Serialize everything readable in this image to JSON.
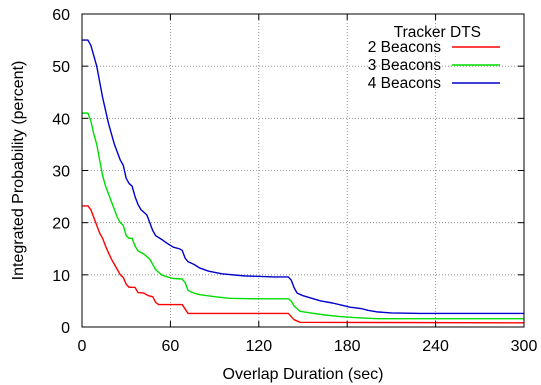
{
  "chart_data": {
    "type": "line",
    "title": "",
    "xlabel": "Overlap Duration (sec)",
    "ylabel": "Integrated Probability (percent)",
    "xlim": [
      0,
      300
    ],
    "ylim": [
      0,
      60
    ],
    "xticks": [
      0,
      60,
      120,
      180,
      240,
      300
    ],
    "yticks": [
      0,
      10,
      20,
      30,
      40,
      50,
      60
    ],
    "grid": true,
    "legend": {
      "title": "Tracker DTS",
      "placement": "top-right"
    },
    "series": [
      {
        "name": "2 Beacons",
        "color": "#ff0000",
        "points": [
          [
            0,
            23.2
          ],
          [
            4,
            23.2
          ],
          [
            6,
            22.5
          ],
          [
            8,
            21
          ],
          [
            10,
            19.5
          ],
          [
            12,
            18
          ],
          [
            14,
            17
          ],
          [
            16,
            15.5
          ],
          [
            18,
            14.2
          ],
          [
            20,
            13
          ],
          [
            22,
            12
          ],
          [
            24,
            11
          ],
          [
            26,
            10
          ],
          [
            28,
            9.5
          ],
          [
            30,
            8.2
          ],
          [
            32,
            7.6
          ],
          [
            36,
            7.6
          ],
          [
            38,
            6.6
          ],
          [
            42,
            6.5
          ],
          [
            45,
            6
          ],
          [
            48,
            5.8
          ],
          [
            50,
            4.7
          ],
          [
            52,
            4.3
          ],
          [
            68,
            4.3
          ],
          [
            72,
            2.6
          ],
          [
            140,
            2.6
          ],
          [
            144,
            1.4
          ],
          [
            148,
            0.9
          ],
          [
            300,
            0.8
          ]
        ]
      },
      {
        "name": "3 Beacons",
        "color": "#00dd00",
        "points": [
          [
            0,
            41
          ],
          [
            4,
            41
          ],
          [
            6,
            39.5
          ],
          [
            8,
            37
          ],
          [
            10,
            35
          ],
          [
            12,
            32
          ],
          [
            14,
            29
          ],
          [
            16,
            27
          ],
          [
            18,
            25.5
          ],
          [
            20,
            24
          ],
          [
            22,
            22.5
          ],
          [
            24,
            21
          ],
          [
            26,
            20
          ],
          [
            28,
            19.5
          ],
          [
            30,
            17.5
          ],
          [
            32,
            17
          ],
          [
            34,
            17
          ],
          [
            36,
            15.5
          ],
          [
            38,
            14.6
          ],
          [
            42,
            14
          ],
          [
            46,
            13
          ],
          [
            50,
            11
          ],
          [
            54,
            10
          ],
          [
            58,
            9.6
          ],
          [
            62,
            9.3
          ],
          [
            68,
            9.2
          ],
          [
            70,
            8.5
          ],
          [
            72,
            7
          ],
          [
            76,
            6.5
          ],
          [
            80,
            6.2
          ],
          [
            90,
            5.8
          ],
          [
            100,
            5.5
          ],
          [
            120,
            5.4
          ],
          [
            140,
            5.4
          ],
          [
            142,
            5
          ],
          [
            144,
            4
          ],
          [
            148,
            3
          ],
          [
            155,
            2.7
          ],
          [
            165,
            2.3
          ],
          [
            175,
            2
          ],
          [
            185,
            1.8
          ],
          [
            200,
            1.6
          ],
          [
            220,
            1.6
          ],
          [
            300,
            1.6
          ]
        ]
      },
      {
        "name": "4 Beacons",
        "color": "#0000cc",
        "points": [
          [
            0,
            55
          ],
          [
            4,
            55
          ],
          [
            6,
            54
          ],
          [
            8,
            52
          ],
          [
            10,
            50
          ],
          [
            12,
            47
          ],
          [
            14,
            44
          ],
          [
            16,
            41.5
          ],
          [
            18,
            39
          ],
          [
            20,
            37
          ],
          [
            22,
            35
          ],
          [
            24,
            33.5
          ],
          [
            26,
            32
          ],
          [
            28,
            31
          ],
          [
            30,
            28.5
          ],
          [
            32,
            27.5
          ],
          [
            34,
            27
          ],
          [
            36,
            25
          ],
          [
            38,
            23.5
          ],
          [
            40,
            22.5
          ],
          [
            44,
            21.5
          ],
          [
            46,
            20
          ],
          [
            48,
            18.5
          ],
          [
            50,
            17.5
          ],
          [
            54,
            16.8
          ],
          [
            58,
            16
          ],
          [
            62,
            15.3
          ],
          [
            66,
            15
          ],
          [
            68,
            14.7
          ],
          [
            70,
            13.2
          ],
          [
            72,
            12.5
          ],
          [
            76,
            12
          ],
          [
            80,
            11.3
          ],
          [
            86,
            10.7
          ],
          [
            95,
            10.2
          ],
          [
            110,
            9.8
          ],
          [
            130,
            9.6
          ],
          [
            140,
            9.6
          ],
          [
            142,
            9
          ],
          [
            144,
            7.5
          ],
          [
            146,
            6.5
          ],
          [
            150,
            6
          ],
          [
            156,
            5.5
          ],
          [
            162,
            5
          ],
          [
            170,
            4.6
          ],
          [
            176,
            4.2
          ],
          [
            182,
            3.8
          ],
          [
            190,
            3.5
          ],
          [
            194,
            3.2
          ],
          [
            200,
            2.9
          ],
          [
            210,
            2.7
          ],
          [
            230,
            2.6
          ],
          [
            300,
            2.6
          ]
        ]
      }
    ]
  }
}
